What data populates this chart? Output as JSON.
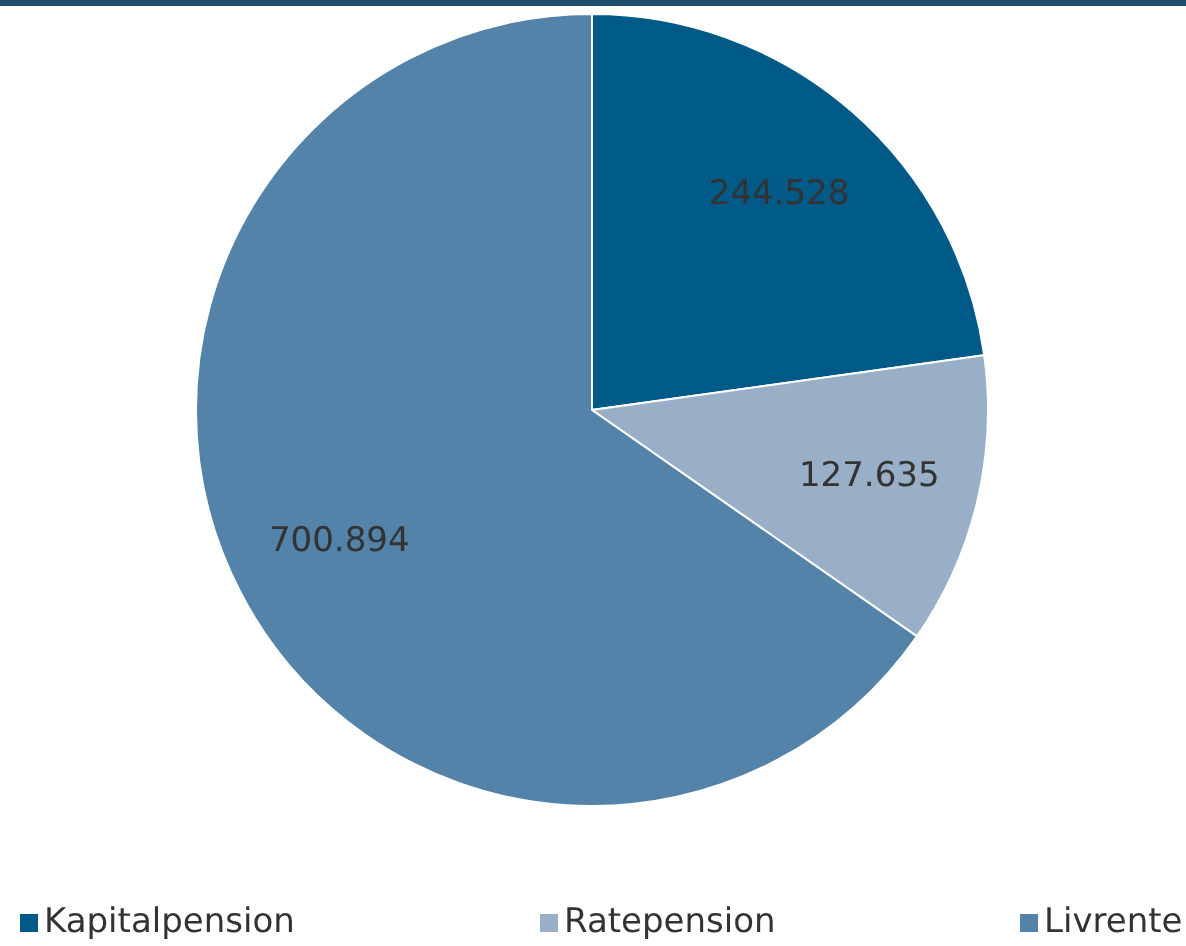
{
  "chart_data": {
    "type": "pie",
    "categories": [
      "Kapitalpension",
      "Ratepension",
      "Livrente"
    ],
    "values": [
      244528,
      127635,
      700894
    ],
    "value_labels": [
      "244.528",
      "127.635",
      "700.894"
    ],
    "colors": [
      "#005a87",
      "#98afc7",
      "#5383a8"
    ],
    "legend": "bottom"
  }
}
